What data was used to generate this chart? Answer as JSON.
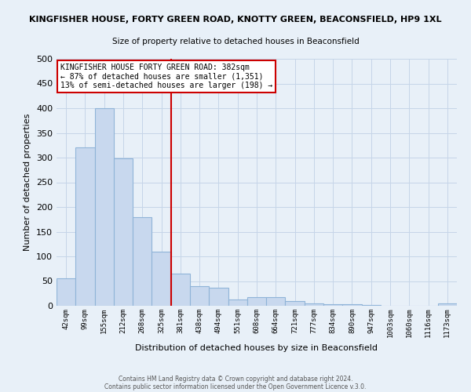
{
  "title_line1": "KINGFISHER HOUSE, FORTY GREEN ROAD, KNOTTY GREEN, BEACONSFIELD, HP9 1XL",
  "title_line2": "Size of property relative to detached houses in Beaconsfield",
  "xlabel": "Distribution of detached houses by size in Beaconsfield",
  "ylabel": "Number of detached properties",
  "bar_labels": [
    "42sqm",
    "99sqm",
    "155sqm",
    "212sqm",
    "268sqm",
    "325sqm",
    "381sqm",
    "438sqm",
    "494sqm",
    "551sqm",
    "608sqm",
    "664sqm",
    "721sqm",
    "777sqm",
    "834sqm",
    "890sqm",
    "947sqm",
    "1003sqm",
    "1060sqm",
    "1116sqm",
    "1173sqm"
  ],
  "bar_values": [
    55,
    320,
    400,
    298,
    180,
    110,
    65,
    40,
    37,
    12,
    18,
    18,
    10,
    5,
    3,
    3,
    2,
    0,
    0,
    0,
    5
  ],
  "bar_color": "#c8d8ee",
  "bar_edge_color": "#90b4d8",
  "grid_color": "#c5d5e8",
  "background_color": "#e8f0f8",
  "marker_index": 6,
  "marker_color": "#cc0000",
  "annotation_title": "KINGFISHER HOUSE FORTY GREEN ROAD: 382sqm",
  "annotation_line1": "← 87% of detached houses are smaller (1,351)",
  "annotation_line2": "13% of semi-detached houses are larger (198) →",
  "annotation_box_color": "#ffffff",
  "annotation_border_color": "#cc0000",
  "ylim": [
    0,
    500
  ],
  "yticks": [
    0,
    50,
    100,
    150,
    200,
    250,
    300,
    350,
    400,
    450,
    500
  ],
  "footer1": "Contains HM Land Registry data © Crown copyright and database right 2024.",
  "footer2": "Contains public sector information licensed under the Open Government Licence v.3.0."
}
